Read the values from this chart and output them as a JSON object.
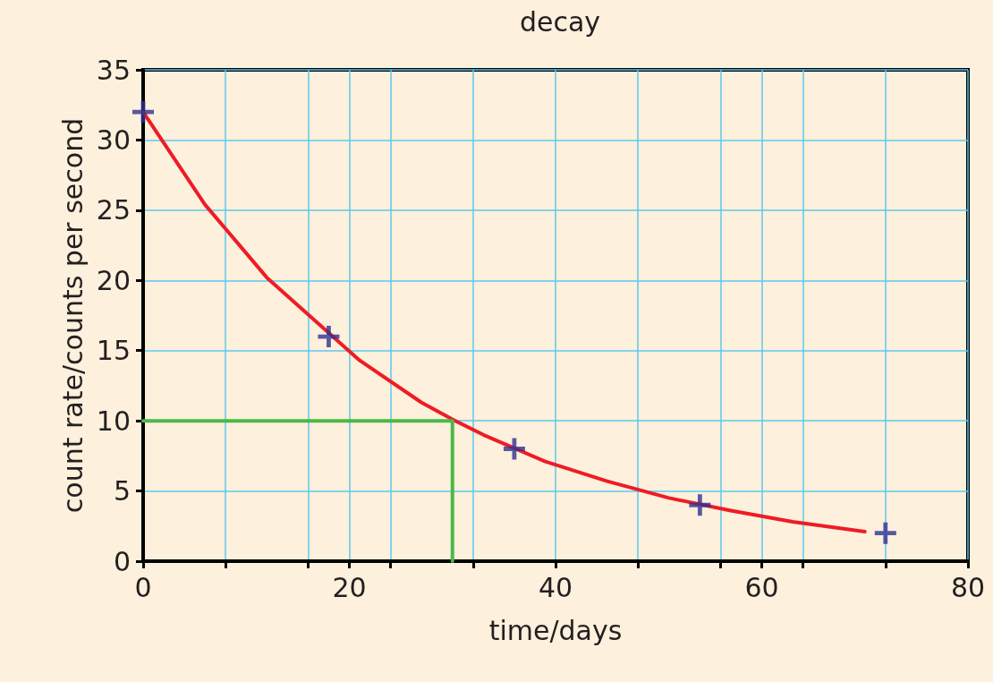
{
  "chart_data": {
    "type": "scatter",
    "title": "decay",
    "xlabel": "time/days",
    "ylabel": "count rate/counts per second",
    "xlim": [
      0,
      80
    ],
    "ylim": [
      0,
      35
    ],
    "xticks": [
      0,
      {
        "value": 8,
        "label": null
      },
      {
        "value": 16,
        "label": null
      },
      20,
      {
        "value": 24,
        "label": null
      },
      {
        "value": 32,
        "label": null
      },
      40,
      {
        "value": 48,
        "label": null
      },
      {
        "value": 56,
        "label": null
      },
      60,
      {
        "value": 64,
        "label": null
      },
      {
        "value": 72,
        "label": null
      },
      80
    ],
    "yticks": [
      0,
      5,
      10,
      15,
      20,
      25,
      30,
      35
    ],
    "grid": true,
    "series": [
      {
        "type": "line",
        "color": "#ee1c25",
        "marker": "none",
        "line_style": "solid",
        "x": [
          0,
          6,
          12,
          21,
          27,
          30,
          33,
          39,
          45,
          51,
          57,
          63,
          70
        ],
        "values": [
          32,
          25.4,
          20.2,
          14.3,
          11.3,
          10.1,
          9,
          7.1,
          5.7,
          4.5,
          3.6,
          2.8,
          2.1
        ]
      },
      {
        "type": "line",
        "color": "#4cb848",
        "marker": "none",
        "line_style": "solid",
        "x": [
          0,
          30,
          30
        ],
        "values": [
          10,
          10,
          0
        ]
      },
      {
        "color": "#2e3192",
        "marker": "cross",
        "x": [
          0,
          18,
          36,
          54,
          72
        ],
        "values": [
          32,
          16,
          8,
          4,
          2
        ]
      }
    ]
  }
}
